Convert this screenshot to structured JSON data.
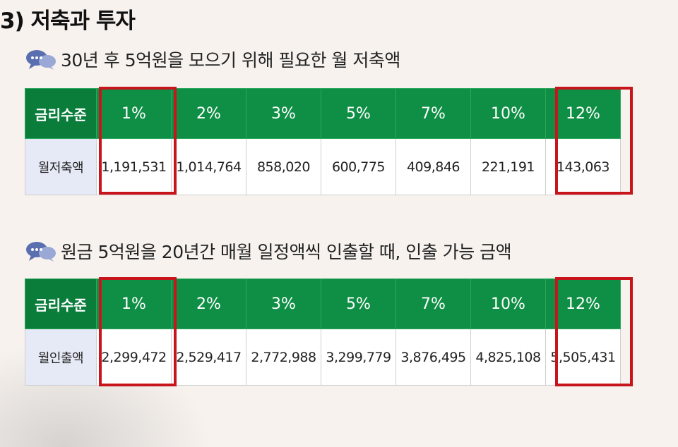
{
  "title": "3) 저축과 투자",
  "section1": {
    "heading": "30년 후 5억원을 모으기 위해 필요한 월 저축액",
    "header_label": "금리수준",
    "row_label": "월저축액",
    "rates": [
      "1%",
      "2%",
      "3%",
      "5%",
      "7%",
      "10%",
      "12%"
    ],
    "values": [
      "1,191,531",
      "1,014,764",
      "858,020",
      "600,775",
      "409,846",
      "221,191",
      "143,063"
    ]
  },
  "section2": {
    "heading": "원금 5억원을 20년간 매월 일정액씩 인출할 때, 인출 가능 금액",
    "header_label": "금리수준",
    "row_label": "월인출액",
    "rates": [
      "1%",
      "2%",
      "3%",
      "5%",
      "7%",
      "10%",
      "12%"
    ],
    "values": [
      "2,299,472",
      "2,529,417",
      "2,772,988",
      "3,299,779",
      "3,876,495",
      "4,825,108",
      "5,505,431"
    ]
  },
  "highlight_color": "#c8141b",
  "header_color": "#0f8f45"
}
